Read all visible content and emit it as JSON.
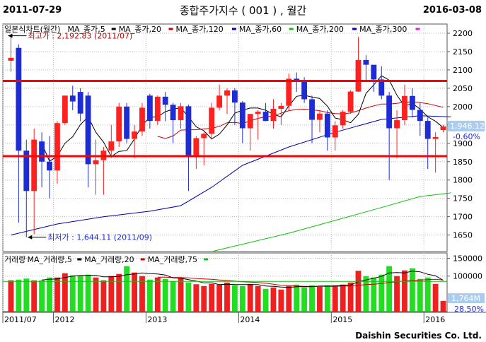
{
  "header": {
    "start_date": "2011-07-29",
    "end_date": "2016-03-08",
    "title": "종합주가지수 ( 001 ) , 월간"
  },
  "brand": "Daishin Securities Co. Ltd.",
  "colors": {
    "up": "#ff2020",
    "down": "#1e2cd6",
    "ma5": "#000000",
    "ma20": "#cc0000",
    "ma60": "#10c010",
    "ma120": "#0000aa",
    "ma300": "#e020e0",
    "hline": "#ff0000",
    "vol_up": "#ee2020",
    "vol_down": "#22dd22",
    "label_box": "#aaccee"
  },
  "price_panel": {
    "legend_title": "일본식차트(월간)",
    "legend": [
      {
        "label": "MA_종가,5",
        "color": "#000000"
      },
      {
        "label": "MA_종가,20",
        "color": "#cc0000"
      },
      {
        "label": "MA_종가,120",
        "color": "#0000aa"
      },
      {
        "label": "MA_종가,60",
        "color": "#10c010"
      },
      {
        "label": "MA_종가,200",
        "color": "#0000aa"
      },
      {
        "label": "MA_종가,300",
        "color": "#e020e0"
      }
    ],
    "high_annotation": "최고가 : 2,192.83 (2011/07)",
    "low_annotation": "최저가 : 1,644.11 (2011/09)",
    "current_label": "1,946.12",
    "current_pct": "-0.60%"
  },
  "volume_panel": {
    "legend_title": "거래량",
    "legend": [
      {
        "label": "MA_거래량,5",
        "color": "#000000"
      },
      {
        "label": "MA_거래량,20",
        "color": "#cc0000"
      },
      {
        "label": "MA_거래량,75",
        "color": "#10c010"
      }
    ],
    "current_label": "1,764M",
    "current_pct": "28.50%"
  },
  "chart_data": {
    "type": "candlestick",
    "price_axis": {
      "min": 1605,
      "max": 2225,
      "ticks": [
        1650,
        1700,
        1750,
        1800,
        1850,
        1900,
        1950,
        2000,
        2050,
        2100,
        2150,
        2200
      ]
    },
    "volume_axis": {
      "min": 0,
      "max": 165000,
      "ticks": [
        100000,
        150000
      ]
    },
    "x_labels": [
      "2011/07",
      "2012",
      "2013",
      "2014",
      "2015",
      "2016"
    ],
    "horizontal_lines": [
      2070,
      1865
    ],
    "candles": [
      {
        "date": "2011/07",
        "o": 2125,
        "h": 2193,
        "l": 2095,
        "c": 2133
      },
      {
        "date": "2011/08",
        "o": 2160,
        "h": 2170,
        "l": 1684,
        "c": 1880
      },
      {
        "date": "2011/09",
        "o": 1880,
        "h": 1910,
        "l": 1644,
        "c": 1770
      },
      {
        "date": "2011/10",
        "o": 1770,
        "h": 1940,
        "l": 1652,
        "c": 1910
      },
      {
        "date": "2011/11",
        "o": 1905,
        "h": 1930,
        "l": 1780,
        "c": 1850
      },
      {
        "date": "2011/12",
        "o": 1850,
        "h": 1920,
        "l": 1750,
        "c": 1826
      },
      {
        "date": "2012/01",
        "o": 1826,
        "h": 1960,
        "l": 1790,
        "c": 1955
      },
      {
        "date": "2012/02",
        "o": 1955,
        "h": 2030,
        "l": 1950,
        "c": 2030
      },
      {
        "date": "2012/03",
        "o": 2030,
        "h": 2057,
        "l": 1990,
        "c": 2014
      },
      {
        "date": "2012/04",
        "o": 2040,
        "h": 2050,
        "l": 1960,
        "c": 1981
      },
      {
        "date": "2012/05",
        "o": 2030,
        "h": 2040,
        "l": 1780,
        "c": 1843
      },
      {
        "date": "2012/06",
        "o": 1843,
        "h": 1910,
        "l": 1760,
        "c": 1854
      },
      {
        "date": "2012/07",
        "o": 1854,
        "h": 1890,
        "l": 1760,
        "c": 1880
      },
      {
        "date": "2012/08",
        "o": 1880,
        "h": 1950,
        "l": 1860,
        "c": 1905
      },
      {
        "date": "2012/09",
        "o": 1905,
        "h": 2010,
        "l": 1890,
        "c": 2000
      },
      {
        "date": "2012/10",
        "o": 2000,
        "h": 2010,
        "l": 1900,
        "c": 1912
      },
      {
        "date": "2012/11",
        "o": 1912,
        "h": 1950,
        "l": 1860,
        "c": 1932
      },
      {
        "date": "2012/12",
        "o": 1932,
        "h": 2010,
        "l": 1920,
        "c": 1997
      },
      {
        "date": "2013/01",
        "o": 2030,
        "h": 2035,
        "l": 1940,
        "c": 1961
      },
      {
        "date": "2013/02",
        "o": 1961,
        "h": 2030,
        "l": 1950,
        "c": 2027
      },
      {
        "date": "2013/03",
        "o": 2027,
        "h": 2040,
        "l": 1960,
        "c": 2005
      },
      {
        "date": "2013/04",
        "o": 2005,
        "h": 2010,
        "l": 1900,
        "c": 1963
      },
      {
        "date": "2013/05",
        "o": 1963,
        "h": 2010,
        "l": 1940,
        "c": 2001
      },
      {
        "date": "2013/06",
        "o": 2001,
        "h": 2005,
        "l": 1770,
        "c": 1863
      },
      {
        "date": "2013/07",
        "o": 1863,
        "h": 1920,
        "l": 1830,
        "c": 1914
      },
      {
        "date": "2013/08",
        "o": 1914,
        "h": 1930,
        "l": 1840,
        "c": 1926
      },
      {
        "date": "2013/09",
        "o": 1926,
        "h": 2010,
        "l": 1910,
        "c": 1997
      },
      {
        "date": "2013/10",
        "o": 1997,
        "h": 2060,
        "l": 1990,
        "c": 2030
      },
      {
        "date": "2013/11",
        "o": 2030,
        "h": 2050,
        "l": 1980,
        "c": 2044
      },
      {
        "date": "2013/12",
        "o": 2044,
        "h": 2050,
        "l": 1950,
        "c": 2011
      },
      {
        "date": "2014/01",
        "o": 2011,
        "h": 2015,
        "l": 1900,
        "c": 1941
      },
      {
        "date": "2014/02",
        "o": 1941,
        "h": 1980,
        "l": 1880,
        "c": 1980
      },
      {
        "date": "2014/03",
        "o": 1980,
        "h": 1990,
        "l": 1910,
        "c": 1986
      },
      {
        "date": "2014/04",
        "o": 1986,
        "h": 2010,
        "l": 1960,
        "c": 1961
      },
      {
        "date": "2014/05",
        "o": 1961,
        "h": 2020,
        "l": 1940,
        "c": 1994
      },
      {
        "date": "2014/06",
        "o": 1994,
        "h": 2010,
        "l": 1950,
        "c": 2002
      },
      {
        "date": "2014/07",
        "o": 2002,
        "h": 2090,
        "l": 1990,
        "c": 2076
      },
      {
        "date": "2014/08",
        "o": 2076,
        "h": 2093,
        "l": 2040,
        "c": 2068
      },
      {
        "date": "2014/09",
        "o": 2068,
        "h": 2080,
        "l": 2010,
        "c": 2020
      },
      {
        "date": "2014/10",
        "o": 2020,
        "h": 2030,
        "l": 1900,
        "c": 1964
      },
      {
        "date": "2014/11",
        "o": 1964,
        "h": 1990,
        "l": 1930,
        "c": 1981
      },
      {
        "date": "2014/12",
        "o": 1981,
        "h": 1990,
        "l": 1880,
        "c": 1916
      },
      {
        "date": "2015/01",
        "o": 1916,
        "h": 1960,
        "l": 1880,
        "c": 1949
      },
      {
        "date": "2015/02",
        "o": 1949,
        "h": 1990,
        "l": 1940,
        "c": 1986
      },
      {
        "date": "2015/03",
        "o": 1986,
        "h": 2045,
        "l": 1980,
        "c": 2041
      },
      {
        "date": "2015/04",
        "o": 2041,
        "h": 2190,
        "l": 2040,
        "c": 2127
      },
      {
        "date": "2015/05",
        "o": 2127,
        "h": 2140,
        "l": 2070,
        "c": 2114
      },
      {
        "date": "2015/06",
        "o": 2114,
        "h": 2110,
        "l": 2040,
        "c": 2074
      },
      {
        "date": "2015/07",
        "o": 2074,
        "h": 2110,
        "l": 2020,
        "c": 2030
      },
      {
        "date": "2015/08",
        "o": 2030,
        "h": 2040,
        "l": 1800,
        "c": 1941
      },
      {
        "date": "2015/09",
        "o": 1941,
        "h": 1990,
        "l": 1860,
        "c": 1963
      },
      {
        "date": "2015/10",
        "o": 1963,
        "h": 2060,
        "l": 1950,
        "c": 2029
      },
      {
        "date": "2015/11",
        "o": 2029,
        "h": 2050,
        "l": 1970,
        "c": 1991
      },
      {
        "date": "2015/12",
        "o": 1991,
        "h": 2010,
        "l": 1920,
        "c": 1961
      },
      {
        "date": "2016/01",
        "o": 1961,
        "h": 1970,
        "l": 1830,
        "c": 1912
      },
      {
        "date": "2016/02",
        "o": 1912,
        "h": 1930,
        "l": 1820,
        "c": 1917
      },
      {
        "date": "2016/03",
        "o": 1936,
        "h": 1950,
        "l": 1930,
        "c": 1946
      }
    ],
    "volumes": [
      88000,
      90000,
      93000,
      88000,
      88000,
      96000,
      96000,
      108000,
      102000,
      100000,
      104000,
      96000,
      88000,
      100000,
      106000,
      128000,
      110000,
      100000,
      90000,
      96000,
      92000,
      86000,
      94000,
      82000,
      77000,
      72000,
      78000,
      76000,
      82000,
      74000,
      72000,
      78000,
      72000,
      64000,
      68000,
      62000,
      72000,
      76000,
      68000,
      74000,
      70000,
      74000,
      74000,
      76000,
      82000,
      115000,
      100000,
      96000,
      104000,
      128000,
      100000,
      116000,
      122000,
      92000,
      96000,
      78000,
      30000
    ],
    "ma_series": {
      "ma5": [
        null,
        null,
        null,
        null,
        1900,
        1851,
        1865,
        1900,
        1918,
        1951,
        1972,
        1930,
        1903,
        1864,
        1878,
        1880,
        1912,
        1949,
        1971,
        1972,
        1986,
        1993,
        1997,
        1972,
        1945,
        1934,
        1912,
        1925,
        1950,
        1982,
        1990,
        1996,
        1996,
        1990,
        1979,
        1972,
        2002,
        2028,
        2031,
        2026,
        2022,
        2001,
        1969,
        1964,
        1956,
        1979,
        2036,
        2059,
        2084,
        2072,
        2031,
        2001,
        2009,
        1993,
        1972,
        1960,
        1943
      ],
      "ma20": [
        null,
        null,
        null,
        null,
        null,
        null,
        null,
        null,
        null,
        null,
        null,
        null,
        null,
        null,
        null,
        null,
        null,
        null,
        null,
        1919,
        1913,
        1920,
        1936,
        1937,
        1937,
        1939,
        1941,
        1946,
        1956,
        1957,
        1954,
        1961,
        1968,
        1972,
        1975,
        1982,
        1989,
        1992,
        1993,
        1991,
        1989,
        1984,
        1981,
        1980,
        1983,
        1989,
        1996,
        2002,
        2007,
        2007,
        2009,
        2012,
        2013,
        2011,
        2008,
        2003,
        1998
      ],
      "ma60_visible": [
        [
          26,
          1605
        ],
        [
          30,
          1625
        ],
        [
          36,
          1655
        ],
        [
          42,
          1690
        ],
        [
          48,
          1725
        ],
        [
          53,
          1755
        ],
        [
          57,
          1765
        ]
      ],
      "ma120_visible": [
        [
          0,
          1650
        ],
        [
          6,
          1680
        ],
        [
          12,
          1700
        ],
        [
          18,
          1715
        ],
        [
          22,
          1730
        ],
        [
          26,
          1780
        ],
        [
          30,
          1840
        ],
        [
          36,
          1890
        ],
        [
          42,
          1930
        ],
        [
          48,
          1965
        ],
        [
          53,
          1975
        ],
        [
          57,
          1972
        ]
      ]
    },
    "volume_ma": {
      "ma5": [
        null,
        null,
        null,
        null,
        89000,
        91000,
        92000,
        96000,
        100000,
        102000,
        102000,
        102000,
        98000,
        98000,
        99000,
        104000,
        106000,
        109000,
        107000,
        106000,
        103000,
        95000,
        94000,
        90000,
        86000,
        81000,
        81000,
        76000,
        77000,
        76000,
        76000,
        76000,
        76000,
        72000,
        71000,
        69000,
        68000,
        70000,
        70000,
        70000,
        72000,
        72000,
        72000,
        74000,
        75000,
        84000,
        89000,
        94000,
        99000,
        109000,
        110000,
        109000,
        114000,
        112000,
        105000,
        101000,
        88000
      ],
      "ma20": [
        null,
        null,
        null,
        null,
        null,
        null,
        null,
        null,
        null,
        null,
        null,
        null,
        null,
        null,
        null,
        null,
        null,
        null,
        null,
        97000,
        97000,
        96000,
        96000,
        95000,
        93000,
        92000,
        91000,
        89000,
        88000,
        86000,
        84000,
        83000,
        82000,
        80000,
        77000,
        74000,
        73000,
        72000,
        71000,
        71000,
        71000,
        71000,
        71000,
        72000,
        72000,
        74000,
        76000,
        77000,
        79000,
        82000,
        84000,
        86000,
        88000,
        89000,
        90000,
        91000,
        89000
      ],
      "ma75_level": 85000
    }
  }
}
